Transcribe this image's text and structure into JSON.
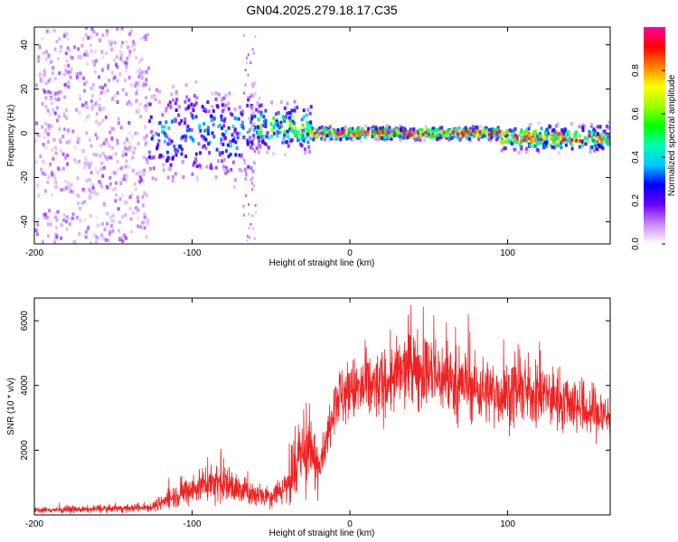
{
  "title": "GN04.2025.279.18.17.C35",
  "chart_data": [
    {
      "type": "heatmap",
      "xlabel": "Height of straight line (km)",
      "ylabel": "Frequency (Hz)",
      "xlim": [
        -200,
        165
      ],
      "ylim": [
        -50,
        48
      ],
      "xticks": [
        "-200",
        "-100",
        "0",
        "100"
      ],
      "yticks": [
        "-40",
        "-20",
        "0",
        "20",
        "40"
      ],
      "colorbar": {
        "label": "Normalized spectral amplitude",
        "range": [
          0,
          1
        ],
        "ticks": [
          "0.0",
          "0.2",
          "0.4",
          "0.6",
          "0.8"
        ],
        "colors": [
          "#ffffff",
          "#cc88ff",
          "#6a00ff",
          "#0000ff",
          "#00c8ff",
          "#00ffb0",
          "#00ff00",
          "#a0ff00",
          "#ffff00",
          "#ff8000",
          "#ff0000",
          "#ff00a0"
        ]
      },
      "regions": [
        {
          "x": [
            -200,
            -128
          ],
          "freq_center": 0,
          "freq_spread": 50,
          "amplitude": 0.12,
          "note": "broadband noise"
        },
        {
          "x": [
            -128,
            -60
          ],
          "freq_center": 0,
          "freq_spread": 12,
          "amplitude": 0.35
        },
        {
          "x": [
            -60,
            -25
          ],
          "freq_center": 3,
          "freq_spread": 6,
          "amplitude": 0.55
        },
        {
          "x": [
            -25,
            95
          ],
          "freq_center": 0,
          "freq_spread": 1.5,
          "amplitude": 0.95
        },
        {
          "x": [
            95,
            165
          ],
          "freq_center": -2,
          "freq_spread": 3,
          "amplitude": 0.85
        }
      ]
    },
    {
      "type": "line",
      "xlabel": "Height of straight line (km)",
      "ylabel": "SNR (10 * v/v)",
      "xlim": [
        -200,
        165
      ],
      "ylim": [
        0,
        6700
      ],
      "xticks": [
        "-200",
        "-100",
        "0",
        "100"
      ],
      "yticks": [
        "2000",
        "4000",
        "6000"
      ],
      "color": "#ee2222",
      "series": [
        {
          "x": [
            -200,
            -180,
            -160,
            -140,
            -125,
            -115,
            -105,
            -95,
            -88,
            -80,
            -75,
            -70,
            -65,
            -60,
            -50,
            -40,
            -35,
            -30,
            -25,
            -20,
            -15,
            -10,
            0,
            10,
            20,
            30,
            40,
            50,
            60,
            70,
            80,
            90,
            100,
            110,
            120,
            130,
            140,
            150,
            160,
            165
          ],
          "values": [
            150,
            160,
            180,
            200,
            250,
            500,
            700,
            900,
            1050,
            1000,
            900,
            750,
            700,
            650,
            600,
            900,
            1300,
            1900,
            1800,
            1600,
            2200,
            3600,
            3800,
            3900,
            4000,
            4300,
            4600,
            4400,
            4200,
            4000,
            3900,
            3800,
            3700,
            3800,
            3700,
            3600,
            3500,
            3200,
            3100,
            3000
          ]
        }
      ]
    }
  ]
}
